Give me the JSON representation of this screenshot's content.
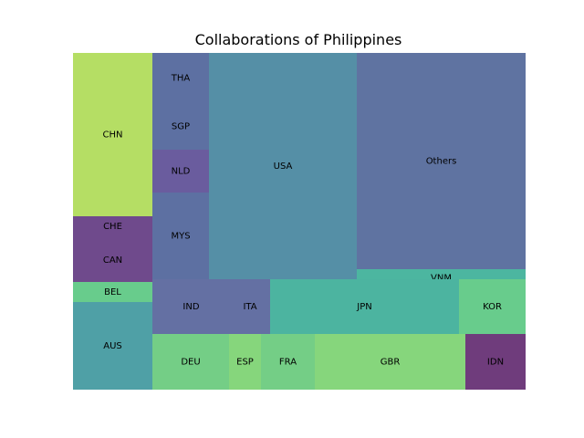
{
  "chart_data": {
    "type": "treemap",
    "title": "Collaborations of Philippines",
    "items": [
      {
        "label": "CHN",
        "color": "#b5de64"
      },
      {
        "label": "CHE",
        "color": "#6f4a8c"
      },
      {
        "label": "CAN",
        "color": "#6f4a8c"
      },
      {
        "label": "BEL",
        "color": "#68cc8c"
      },
      {
        "label": "AUS",
        "color": "#4fa0a6"
      },
      {
        "label": "THA",
        "color": "#5d70a2"
      },
      {
        "label": "SGP",
        "color": "#5d70a2"
      },
      {
        "label": "NLD",
        "color": "#6a5c9e"
      },
      {
        "label": "MYS",
        "color": "#5d70a2"
      },
      {
        "label": "USA",
        "color": "#558fa6"
      },
      {
        "label": "Others",
        "color": "#5f73a1"
      },
      {
        "label": "VNM",
        "color": "#4cb6a0"
      },
      {
        "label": "IND",
        "color": "#6470a3"
      },
      {
        "label": "ITA",
        "color": "#6470a3"
      },
      {
        "label": "JPN",
        "color": "#4cb4a0"
      },
      {
        "label": "KOR",
        "color": "#68cc8c"
      },
      {
        "label": "DEU",
        "color": "#74ce86"
      },
      {
        "label": "ESP",
        "color": "#86d67c"
      },
      {
        "label": "FRA",
        "color": "#74ce86"
      },
      {
        "label": "GBR",
        "color": "#86d67c"
      },
      {
        "label": "IDN",
        "color": "#6f3c7c"
      }
    ]
  }
}
